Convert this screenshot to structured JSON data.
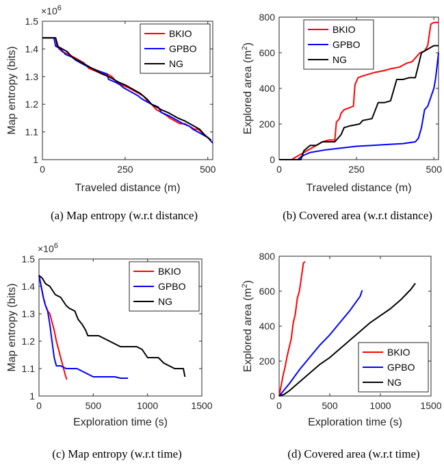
{
  "colors": {
    "BKIO": "#ff0000",
    "GPBO": "#0000ff",
    "NG": "#000000"
  },
  "chart_data": [
    {
      "id": "a",
      "type": "line",
      "caption": "(a) Map entropy (w.r.t distance)",
      "xlabel": "Traveled distance (m)",
      "ylabel": "Map entropy (bits)",
      "y_multiplier": "×10",
      "y_multiplier_exp": "6",
      "xlim": [
        0,
        515
      ],
      "ylim": [
        1.0,
        1.5
      ],
      "xticks": [
        0,
        250,
        500
      ],
      "yticks": [
        1,
        1.1,
        1.2,
        1.3,
        1.4,
        1.5
      ],
      "legend_pos": "top-right",
      "series": [
        {
          "name": "BKIO",
          "x": [
            0,
            40,
            50,
            60,
            80,
            95,
            110,
            125,
            140,
            160,
            180,
            195,
            210,
            225,
            240,
            260,
            275,
            290,
            305,
            320,
            330,
            345,
            360,
            375,
            385,
            400,
            415,
            430,
            445,
            460,
            470,
            480,
            490,
            500,
            510
          ],
          "y": [
            1.44,
            1.44,
            1.4,
            1.39,
            1.38,
            1.37,
            1.36,
            1.35,
            1.33,
            1.32,
            1.31,
            1.31,
            1.3,
            1.28,
            1.27,
            1.26,
            1.25,
            1.24,
            1.23,
            1.21,
            1.2,
            1.18,
            1.17,
            1.16,
            1.15,
            1.14,
            1.13,
            1.13,
            1.12,
            1.11,
            1.11,
            1.1,
            1.09,
            1.08,
            1.07
          ]
        },
        {
          "name": "GPBO",
          "x": [
            0,
            35,
            40,
            55,
            70,
            90,
            100,
            115,
            130,
            150,
            170,
            195,
            200,
            220,
            235,
            245,
            260,
            275,
            290,
            300,
            315,
            330,
            350,
            360,
            380,
            395,
            410,
            425,
            445,
            455,
            470,
            485,
            500,
            515
          ],
          "y": [
            1.44,
            1.44,
            1.41,
            1.4,
            1.38,
            1.37,
            1.36,
            1.35,
            1.34,
            1.33,
            1.32,
            1.31,
            1.29,
            1.28,
            1.27,
            1.26,
            1.25,
            1.24,
            1.23,
            1.22,
            1.21,
            1.2,
            1.19,
            1.17,
            1.16,
            1.15,
            1.14,
            1.13,
            1.12,
            1.11,
            1.1,
            1.09,
            1.08,
            1.06
          ]
        },
        {
          "name": "NG",
          "x": [
            0,
            40,
            45,
            60,
            75,
            90,
            105,
            120,
            135,
            150,
            165,
            180,
            200,
            215,
            230,
            250,
            265,
            280,
            295,
            315,
            330,
            345,
            360,
            380,
            395,
            410,
            430,
            445,
            460,
            475,
            490,
            500,
            510
          ],
          "y": [
            1.44,
            1.44,
            1.41,
            1.4,
            1.39,
            1.37,
            1.36,
            1.35,
            1.34,
            1.33,
            1.32,
            1.31,
            1.3,
            1.29,
            1.28,
            1.27,
            1.26,
            1.25,
            1.24,
            1.22,
            1.2,
            1.19,
            1.18,
            1.17,
            1.16,
            1.15,
            1.14,
            1.13,
            1.12,
            1.11,
            1.09,
            1.08,
            1.07
          ]
        }
      ]
    },
    {
      "id": "b",
      "type": "line",
      "caption": "(b) Covered area (w.r.t distance)",
      "xlabel": "Traveled distance (m)",
      "ylabel": "Explored area (m",
      "ylabel_sup": "2",
      "ylabel_end": ")",
      "xlim": [
        0,
        515
      ],
      "ylim": [
        0,
        800
      ],
      "xticks": [
        0,
        250,
        500
      ],
      "yticks": [
        0,
        200,
        400,
        600,
        800
      ],
      "legend_pos": "top-left",
      "series": [
        {
          "name": "BKIO",
          "x": [
            0,
            40,
            60,
            80,
            100,
            120,
            140,
            160,
            180,
            185,
            195,
            200,
            210,
            240,
            245,
            255,
            270,
            290,
            310,
            340,
            360,
            390,
            410,
            430,
            445,
            455,
            470,
            480,
            490,
            500,
            515
          ],
          "y": [
            0,
            0,
            20,
            40,
            60,
            80,
            100,
            110,
            110,
            210,
            230,
            260,
            280,
            300,
            420,
            460,
            470,
            480,
            490,
            500,
            510,
            520,
            540,
            550,
            580,
            600,
            610,
            640,
            760,
            770,
            770
          ]
        },
        {
          "name": "GPBO",
          "x": [
            0,
            60,
            70,
            80,
            100,
            150,
            200,
            250,
            300,
            350,
            400,
            440,
            450,
            460,
            470,
            480,
            490,
            500,
            505,
            510,
            515
          ],
          "y": [
            0,
            0,
            15,
            25,
            40,
            55,
            65,
            75,
            80,
            85,
            90,
            100,
            120,
            180,
            280,
            300,
            350,
            400,
            450,
            520,
            600
          ]
        },
        {
          "name": "NG",
          "x": [
            0,
            70,
            80,
            100,
            120,
            140,
            180,
            200,
            210,
            230,
            260,
            270,
            300,
            320,
            340,
            360,
            380,
            400,
            420,
            440,
            460,
            480,
            500,
            515
          ],
          "y": [
            0,
            0,
            50,
            80,
            80,
            100,
            100,
            140,
            180,
            190,
            200,
            220,
            230,
            320,
            320,
            330,
            450,
            450,
            460,
            460,
            600,
            620,
            640,
            640
          ]
        }
      ]
    },
    {
      "id": "c",
      "type": "line",
      "caption": "(c) Map entropy (w.r.t time)",
      "xlabel": "Exploration time (s)",
      "ylabel": "Map entropy (bits)",
      "y_multiplier": "×10",
      "y_multiplier_exp": "6",
      "xlim": [
        0,
        1500
      ],
      "ylim": [
        1.0,
        1.5
      ],
      "xticks": [
        0,
        500,
        1000,
        1500
      ],
      "yticks": [
        1,
        1.1,
        1.2,
        1.3,
        1.4,
        1.5
      ],
      "legend_pos": "top-right",
      "series": [
        {
          "name": "BKIO",
          "x": [
            0,
            20,
            40,
            60,
            80,
            100,
            120,
            140,
            160,
            180,
            200,
            220,
            240,
            255
          ],
          "y": [
            1.44,
            1.4,
            1.36,
            1.33,
            1.31,
            1.3,
            1.27,
            1.24,
            1.2,
            1.17,
            1.14,
            1.11,
            1.08,
            1.06
          ]
        },
        {
          "name": "GPBO",
          "x": [
            0,
            20,
            40,
            60,
            80,
            100,
            120,
            140,
            160,
            200,
            250,
            300,
            350,
            400,
            450,
            500,
            550,
            600,
            650,
            700,
            750,
            800,
            820
          ],
          "y": [
            1.44,
            1.4,
            1.36,
            1.33,
            1.31,
            1.26,
            1.2,
            1.14,
            1.11,
            1.11,
            1.1,
            1.1,
            1.1,
            1.09,
            1.08,
            1.07,
            1.07,
            1.07,
            1.07,
            1.07,
            1.065,
            1.065,
            1.065
          ]
        },
        {
          "name": "NG",
          "x": [
            0,
            30,
            60,
            100,
            150,
            200,
            250,
            280,
            330,
            360,
            400,
            430,
            450,
            500,
            550,
            600,
            700,
            750,
            800,
            900,
            950,
            1000,
            1050,
            1100,
            1150,
            1200,
            1250,
            1300,
            1330,
            1345
          ],
          "y": [
            1.44,
            1.43,
            1.41,
            1.4,
            1.37,
            1.36,
            1.33,
            1.32,
            1.31,
            1.28,
            1.26,
            1.24,
            1.22,
            1.22,
            1.22,
            1.21,
            1.19,
            1.18,
            1.18,
            1.18,
            1.17,
            1.14,
            1.14,
            1.14,
            1.12,
            1.11,
            1.1,
            1.1,
            1.1,
            1.07
          ]
        }
      ]
    },
    {
      "id": "d",
      "type": "line",
      "caption": "(d) Covered area (w.r.t time)",
      "xlabel": "Exploration time (s)",
      "ylabel": "Explored area (m",
      "ylabel_sup": "2",
      "ylabel_end": ")",
      "xlim": [
        0,
        1500
      ],
      "ylim": [
        0,
        800
      ],
      "xticks": [
        0,
        500,
        1000,
        1500
      ],
      "yticks": [
        0,
        200,
        400,
        600,
        800
      ],
      "legend_pos": "bottom-right",
      "series": [
        {
          "name": "BKIO",
          "x": [
            0,
            20,
            40,
            60,
            80,
            100,
            120,
            140,
            160,
            180,
            200,
            220,
            240,
            255
          ],
          "y": [
            0,
            60,
            120,
            170,
            230,
            280,
            330,
            420,
            470,
            560,
            600,
            680,
            760,
            770
          ]
        },
        {
          "name": "GPBO",
          "x": [
            0,
            100,
            200,
            300,
            400,
            500,
            600,
            700,
            800,
            820
          ],
          "y": [
            0,
            70,
            150,
            220,
            290,
            350,
            420,
            490,
            570,
            605
          ]
        },
        {
          "name": "NG",
          "x": [
            0,
            50,
            100,
            200,
            300,
            400,
            500,
            600,
            700,
            800,
            900,
            1000,
            1100,
            1200,
            1300,
            1345
          ],
          "y": [
            0,
            10,
            30,
            80,
            130,
            180,
            220,
            270,
            320,
            370,
            420,
            460,
            500,
            550,
            610,
            645
          ]
        }
      ]
    }
  ]
}
